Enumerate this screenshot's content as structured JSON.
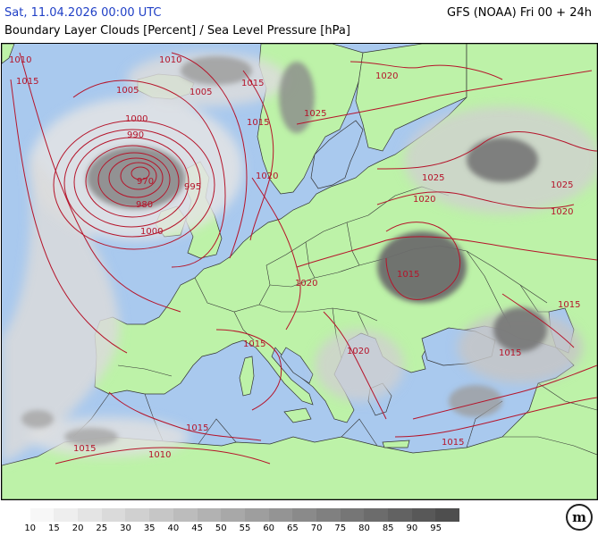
{
  "header": {
    "run_time": "Sat, 11.04.2026 00:00 UTC",
    "model": "GFS (NOAA) Fri 00 + 24h",
    "parameter": "Boundary Layer Clouds [Percent] / Sea Level Pressure [hPa]"
  },
  "colors": {
    "date_text": "#1f3fc6",
    "land": "#bdf2a8",
    "sea": "#a9c9ee",
    "isobar": "#b5142a",
    "border": "#333333"
  },
  "isobar_labels": [
    "1010",
    "1015",
    "1005",
    "1005",
    "1010",
    "1015",
    "1020",
    "1025",
    "1000",
    "990",
    "970",
    "980",
    "995",
    "1000",
    "1015",
    "1020",
    "1025",
    "1020",
    "1025",
    "1020",
    "1015",
    "1020",
    "1015",
    "1020",
    "1015",
    "1015",
    "1015",
    "1010",
    "1015",
    "1015"
  ],
  "legend": {
    "values": [
      "10",
      "15",
      "20",
      "25",
      "30",
      "35",
      "40",
      "45",
      "50",
      "55",
      "60",
      "65",
      "70",
      "75",
      "80",
      "85",
      "90",
      "95"
    ],
    "colors": [
      "#ffffff",
      "#f7f7f7",
      "#eeeeee",
      "#e4e4e4",
      "#dadada",
      "#d0d0d0",
      "#c6c6c6",
      "#bcbcbc",
      "#b2b2b2",
      "#a8a8a8",
      "#9e9e9e",
      "#949494",
      "#8a8a8a",
      "#808080",
      "#767676",
      "#6c6c6c",
      "#626262",
      "#585858",
      "#4e4e4e"
    ]
  },
  "logo": {
    "text": "m",
    "icon": "meteoblue-logo-icon"
  }
}
